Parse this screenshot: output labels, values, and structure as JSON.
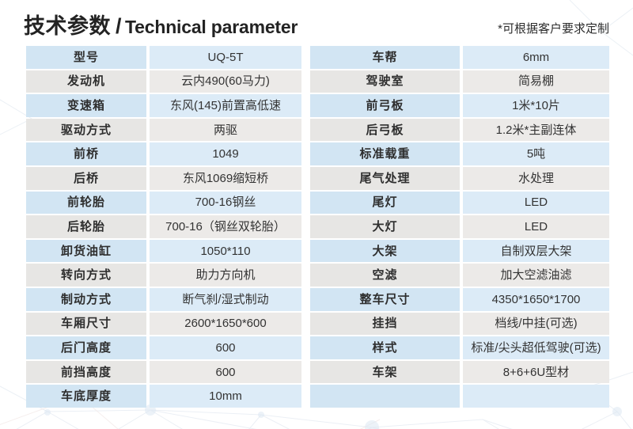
{
  "header": {
    "title_zh": "技术参数",
    "separator": "/",
    "title_en": "Technical parameter",
    "note": "*可根据客户要求定制"
  },
  "tables": {
    "left": {
      "rows": [
        {
          "label": "型号",
          "value": "UQ-5T"
        },
        {
          "label": "发动机",
          "value": "云内490(60马力)"
        },
        {
          "label": "变速箱",
          "value": "东风(145)前置高低速"
        },
        {
          "label": "驱动方式",
          "value": "两驱"
        },
        {
          "label": "前桥",
          "value": "1049"
        },
        {
          "label": "后桥",
          "value": "东风1069缩短桥"
        },
        {
          "label": "前轮胎",
          "value": "700-16钢丝"
        },
        {
          "label": "后轮胎",
          "value": "700-16（钢丝双轮胎）"
        },
        {
          "label": "卸货油缸",
          "value": "1050*110"
        },
        {
          "label": "转向方式",
          "value": "助力方向机"
        },
        {
          "label": "制动方式",
          "value": "断气刹/湿式制动"
        },
        {
          "label": "车厢尺寸",
          "value": "2600*1650*600"
        },
        {
          "label": "后门高度",
          "value": "600"
        },
        {
          "label": "前挡高度",
          "value": "600"
        },
        {
          "label": "车底厚度",
          "value": "10mm"
        }
      ]
    },
    "right": {
      "rows": [
        {
          "label": "车帮",
          "value": "6mm"
        },
        {
          "label": "驾驶室",
          "value": "简易棚"
        },
        {
          "label": "前弓板",
          "value": "1米*10片"
        },
        {
          "label": "后弓板",
          "value": "1.2米*主副连体"
        },
        {
          "label": "标准载重",
          "value": "5吨"
        },
        {
          "label": "尾气处理",
          "value": "水处理"
        },
        {
          "label": "尾灯",
          "value": "LED"
        },
        {
          "label": "大灯",
          "value": "LED"
        },
        {
          "label": "大架",
          "value": "自制双层大架"
        },
        {
          "label": "空滤",
          "value": "加大空滤油滤"
        },
        {
          "label": "整车尺寸",
          "value": "4350*1650*1700"
        },
        {
          "label": "挂挡",
          "value": "档线/中挂(可选)"
        },
        {
          "label": "样式",
          "value": "标准/尖头超低驾驶(可选)"
        },
        {
          "label": "车架",
          "value": "8+6+6U型材"
        },
        {
          "label": "",
          "value": ""
        }
      ]
    }
  },
  "colors": {
    "row_blue_label": "#d2e5f3",
    "row_blue_value": "#dcebf7",
    "row_gray_label": "#e7e6e4",
    "row_gray_value": "#eceae8",
    "text_label": "#2e2e2e",
    "text_value": "#333333"
  }
}
